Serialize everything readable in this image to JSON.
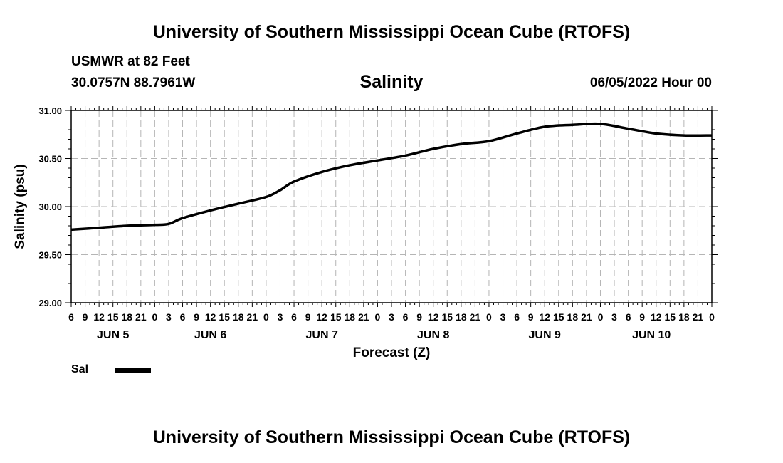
{
  "header": {
    "title": "University of Southern Mississippi Ocean Cube (RTOFS)",
    "station": "USMWR at 82 Feet",
    "coords": "30.0757N  88.7961W",
    "plot_title": "Salinity",
    "datetime": "06/05/2022 Hour 00"
  },
  "footer": {
    "title": "University of Southern Mississippi Ocean Cube (RTOFS)"
  },
  "legend": {
    "label": "Sal",
    "color": "#000000"
  },
  "chart_data": {
    "type": "line",
    "title": "Salinity",
    "xlabel": "Forecast (Z)",
    "ylabel": "Salinity (psu)",
    "ylim": [
      29.0,
      31.0
    ],
    "yticks": [
      "29.00",
      "29.50",
      "30.00",
      "30.50",
      "31.00"
    ],
    "xlim_hours": [
      6,
      144
    ],
    "x_tick_labels": [
      "6",
      "9",
      "12",
      "15",
      "18",
      "21",
      "0",
      "3",
      "6",
      "9",
      "12",
      "15",
      "18",
      "21",
      "0",
      "3",
      "6",
      "9",
      "12",
      "15",
      "18",
      "21",
      "0",
      "3",
      "6",
      "9",
      "12",
      "15",
      "18",
      "21",
      "0",
      "3",
      "6",
      "9",
      "12",
      "15",
      "18",
      "21",
      "0",
      "3",
      "6",
      "9",
      "12",
      "15",
      "18",
      "21",
      "0"
    ],
    "day_labels": [
      {
        "label": "JUN 5",
        "hour": 15
      },
      {
        "label": "JUN 6",
        "hour": 36
      },
      {
        "label": "JUN 7",
        "hour": 60
      },
      {
        "label": "JUN 8",
        "hour": 84
      },
      {
        "label": "JUN 9",
        "hour": 108
      },
      {
        "label": "JUN 10",
        "hour": 131
      }
    ],
    "grid": true,
    "series": [
      {
        "name": "Sal",
        "x_hours": [
          6,
          12,
          18,
          24,
          27,
          30,
          36,
          42,
          48,
          51,
          54,
          60,
          66,
          72,
          78,
          84,
          90,
          96,
          102,
          108,
          114,
          120,
          126,
          132,
          138,
          144
        ],
        "values": [
          29.76,
          29.78,
          29.8,
          29.81,
          29.82,
          29.88,
          29.96,
          30.03,
          30.1,
          30.17,
          30.26,
          30.36,
          30.43,
          30.48,
          30.53,
          30.6,
          30.65,
          30.68,
          30.76,
          30.83,
          30.85,
          30.86,
          30.81,
          30.76,
          30.74,
          30.74
        ]
      }
    ]
  }
}
